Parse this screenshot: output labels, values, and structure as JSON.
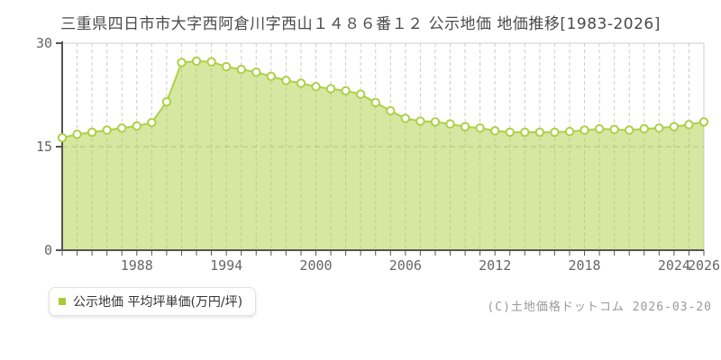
{
  "page": {
    "title": "三重県四日市市大字西阿倉川字西山１４８６番１２ 公示地価 地価推移[1983-2026]",
    "legend": {
      "label": "公示地価 平均坪単価(万円/坪)",
      "marker_color": "#a8cc33"
    },
    "copyright": "(C)土地価格ドットコム 2026-03-20"
  },
  "chart_data": {
    "type": "area",
    "title": "三重県四日市市大字西阿倉川字西山１４８６番１２ 公示地価 地価推移[1983-2026]",
    "x": [
      1983,
      1984,
      1985,
      1986,
      1987,
      1988,
      1989,
      1990,
      1991,
      1992,
      1993,
      1994,
      1995,
      1996,
      1997,
      1998,
      1999,
      2000,
      2001,
      2002,
      2003,
      2004,
      2005,
      2006,
      2007,
      2008,
      2009,
      2010,
      2011,
      2012,
      2013,
      2014,
      2015,
      2016,
      2017,
      2018,
      2019,
      2020,
      2021,
      2022,
      2023,
      2024,
      2025,
      2026
    ],
    "series": [
      {
        "name": "公示地価 平均坪単価(万円/坪)",
        "values": [
          16.3,
          16.8,
          17.1,
          17.4,
          17.7,
          18.0,
          18.5,
          21.5,
          27.2,
          27.4,
          27.3,
          26.6,
          26.2,
          25.8,
          25.2,
          24.6,
          24.2,
          23.7,
          23.4,
          23.1,
          22.6,
          21.4,
          20.2,
          19.1,
          18.7,
          18.6,
          18.3,
          17.9,
          17.7,
          17.3,
          17.1,
          17.1,
          17.1,
          17.1,
          17.2,
          17.4,
          17.6,
          17.5,
          17.4,
          17.6,
          17.7,
          17.9,
          18.2,
          18.6
        ]
      }
    ],
    "ylim": [
      0,
      30
    ],
    "yticks": [
      0,
      15,
      30
    ],
    "xticks": [
      1988,
      1994,
      2000,
      2006,
      2012,
      2018,
      2024,
      2026
    ],
    "grid": "vertical dashed per year; horizontal dashed at 15; solid light top/right border",
    "legend_position": "bottom-left",
    "colors": {
      "line": "#aed046",
      "fill": "rgba(174,208,70,0.5)",
      "point_fill": "#ffffff",
      "grid": "#cccccc",
      "axis": "#555555",
      "tick_text": "#666666"
    }
  }
}
